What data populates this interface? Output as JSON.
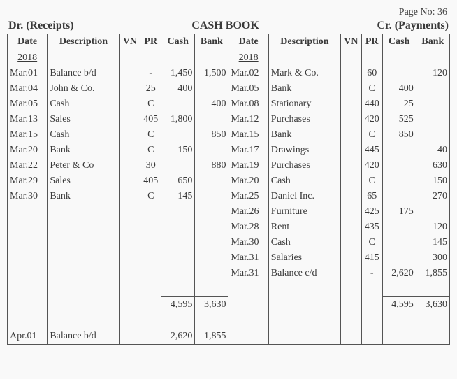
{
  "page_label": "Page No: 36",
  "header": {
    "left": "Dr. (Receipts)",
    "title": "CASH BOOK",
    "right": "Cr. (Payments)"
  },
  "columns": {
    "date": "Date",
    "desc": "Description",
    "vn": "VN",
    "pr": "PR",
    "cash": "Cash",
    "bank": "Bank"
  },
  "year": "2018",
  "dr": [
    {
      "date": "Mar.01",
      "desc": "Balance b/d",
      "vn": "",
      "pr": "-",
      "cash": "1,450",
      "bank": "1,500"
    },
    {
      "date": "Mar.04",
      "desc": "John & Co.",
      "vn": "",
      "pr": "25",
      "cash": "400",
      "bank": ""
    },
    {
      "date": "Mar.05",
      "desc": "Cash",
      "vn": "",
      "pr": "C",
      "cash": "",
      "bank": "400"
    },
    {
      "date": "Mar.13",
      "desc": "Sales",
      "vn": "",
      "pr": "405",
      "cash": "1,800",
      "bank": ""
    },
    {
      "date": "Mar.15",
      "desc": "Cash",
      "vn": "",
      "pr": "C",
      "cash": "",
      "bank": "850"
    },
    {
      "date": "Mar.20",
      "desc": "Bank",
      "vn": "",
      "pr": "C",
      "cash": "150",
      "bank": ""
    },
    {
      "date": "Mar.22",
      "desc": "Peter & Co",
      "vn": "",
      "pr": "30",
      "cash": "",
      "bank": "880"
    },
    {
      "date": "Mar.29",
      "desc": "Sales",
      "vn": "",
      "pr": "405",
      "cash": "650",
      "bank": ""
    },
    {
      "date": "Mar.30",
      "desc": "Bank",
      "vn": "",
      "pr": "C",
      "cash": "145",
      "bank": ""
    }
  ],
  "cr": [
    {
      "date": "Mar.02",
      "desc": "Mark & Co.",
      "vn": "",
      "pr": "60",
      "cash": "",
      "bank": "120"
    },
    {
      "date": "Mar.05",
      "desc": "Bank",
      "vn": "",
      "pr": "C",
      "cash": "400",
      "bank": ""
    },
    {
      "date": "Mar.08",
      "desc": "Stationary",
      "vn": "",
      "pr": "440",
      "cash": "25",
      "bank": ""
    },
    {
      "date": "Mar.12",
      "desc": "Purchases",
      "vn": "",
      "pr": "420",
      "cash": "525",
      "bank": ""
    },
    {
      "date": "Mar.15",
      "desc": "Bank",
      "vn": "",
      "pr": "C",
      "cash": "850",
      "bank": ""
    },
    {
      "date": "Mar.17",
      "desc": "Drawings",
      "vn": "",
      "pr": "445",
      "cash": "",
      "bank": "40"
    },
    {
      "date": "Mar.19",
      "desc": "Purchases",
      "vn": "",
      "pr": "420",
      "cash": "",
      "bank": "630"
    },
    {
      "date": "Mar.20",
      "desc": "Cash",
      "vn": "",
      "pr": "C",
      "cash": "",
      "bank": "150"
    },
    {
      "date": "Mar.25",
      "desc": "Daniel Inc.",
      "vn": "",
      "pr": "65",
      "cash": "",
      "bank": "270"
    },
    {
      "date": "Mar.26",
      "desc": "Furniture",
      "vn": "",
      "pr": "425",
      "cash": "175",
      "bank": ""
    },
    {
      "date": "Mar.28",
      "desc": "Rent",
      "vn": "",
      "pr": "435",
      "cash": "",
      "bank": "120"
    },
    {
      "date": "Mar.30",
      "desc": "Cash",
      "vn": "",
      "pr": "C",
      "cash": "",
      "bank": "145"
    },
    {
      "date": "Mar.31",
      "desc": "Salaries",
      "vn": "",
      "pr": "415",
      "cash": "",
      "bank": "300"
    },
    {
      "date": "Mar.31",
      "desc": "Balance c/d",
      "vn": "",
      "pr": "-",
      "cash": "2,620",
      "bank": "1,855"
    }
  ],
  "totals": {
    "dr_cash": "4,595",
    "dr_bank": "3,630",
    "cr_cash": "4,595",
    "cr_bank": "3,630"
  },
  "carry": {
    "date": "Apr.01",
    "desc": "Balance b/d",
    "cash": "2,620",
    "bank": "1,855"
  }
}
